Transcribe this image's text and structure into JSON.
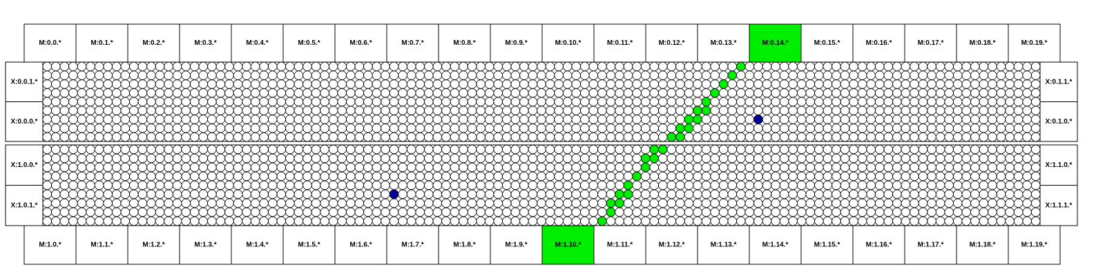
{
  "top_labels": [
    "M:0.0.*",
    "M:0.1.*",
    "M:0.2.*",
    "M:0.3.*",
    "M:0.4.*",
    "M:0.5.*",
    "M:0.6.*",
    "M:0.7.*",
    "M:0.8.*",
    "M:0.9.*",
    "M:0.10.*",
    "M:0.11.*",
    "M:0.12.*",
    "M:0.13.*",
    "M:0.14.*",
    "M:0.15.*",
    "M:0.16.*",
    "M:0.17.*",
    "M:0.18.*",
    "M:0.19.*"
  ],
  "bottom_labels": [
    "M:1.0.*",
    "M:1.1.*",
    "M:1.2.*",
    "M:1.3.*",
    "M:1.4.*",
    "M:1.5.*",
    "M:1.6.*",
    "M:1.7.*",
    "M:1.8.*",
    "M:1.9.*",
    "M:1.10.*",
    "M:1.11.*",
    "M:1.12.*",
    "M:1.13.*",
    "M:1.14.*",
    "M:1.15.*",
    "M:1.16.*",
    "M:1.17.*",
    "M:1.18.*",
    "M:1.19.*"
  ],
  "top_highlight": 14,
  "bottom_highlight": 10,
  "left_labels": [
    "X:0.0.1.*",
    "X:0.0.0.*",
    "X:1.0.0.*",
    "X:1.0.1.*"
  ],
  "right_labels": [
    "X:0.1.1.*",
    "X:0.1.0.*",
    "X:1.1.0.*",
    "X:1.1.1.*"
  ],
  "grid": {
    "rows": 9,
    "cols": 115
  },
  "panels": [
    {
      "green": [
        [
          0,
          80
        ],
        [
          1,
          79
        ],
        [
          2,
          78
        ],
        [
          3,
          77
        ],
        [
          4,
          76
        ],
        [
          5,
          75
        ],
        [
          5,
          76
        ],
        [
          6,
          74
        ],
        [
          6,
          75
        ],
        [
          7,
          73
        ],
        [
          7,
          74
        ],
        [
          8,
          72
        ],
        [
          8,
          73
        ]
      ],
      "blue": [
        [
          6,
          82
        ]
      ]
    },
    {
      "green": [
        [
          0,
          70
        ],
        [
          0,
          71
        ],
        [
          1,
          69
        ],
        [
          1,
          70
        ],
        [
          2,
          69
        ],
        [
          3,
          68
        ],
        [
          4,
          67
        ],
        [
          5,
          66
        ],
        [
          5,
          67
        ],
        [
          6,
          65
        ],
        [
          6,
          66
        ],
        [
          7,
          65
        ],
        [
          8,
          64
        ]
      ],
      "blue": [
        [
          5,
          40
        ]
      ]
    }
  ],
  "colors": {
    "active": "#00ee00",
    "marker": "#000099"
  }
}
